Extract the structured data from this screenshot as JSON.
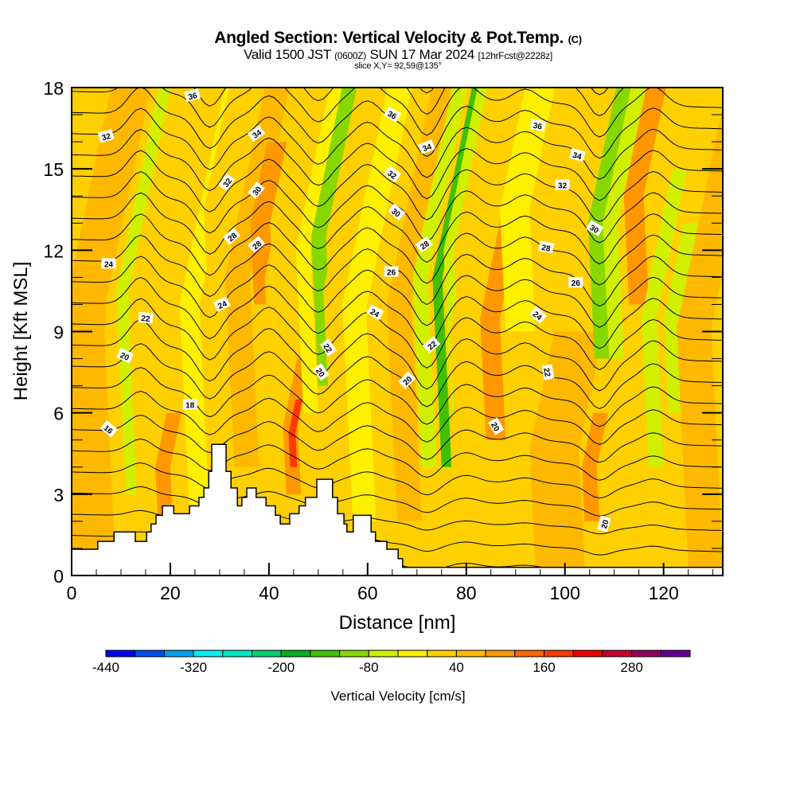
{
  "header": {
    "title": "Angled Section: Vertical Velocity & Pot.Temp.",
    "title_mark": "(C)",
    "valid_prefix": "Valid 1500 JST",
    "valid_utc": "(0600Z)",
    "valid_date": "SUN 17 Mar 2024",
    "forecast": "[12hrFcst@2228z]",
    "slice": "slice X,Y= 92,59@135°"
  },
  "chart_data": {
    "type": "heatmap",
    "title": "Angled Section: Vertical Velocity & Pot.Temp.",
    "xlabel": "Distance [nm]",
    "ylabel": "Height [Kft MSL]",
    "xlim": [
      0,
      132
    ],
    "ylim": [
      0,
      18
    ],
    "xticks": [
      0,
      20,
      40,
      60,
      80,
      100,
      120
    ],
    "yticks": [
      0,
      3,
      6,
      9,
      12,
      15,
      18
    ],
    "colorbar": {
      "title": "Vertical Velocity [cm/s]",
      "tick_labels": [
        "-440",
        "-320",
        "-200",
        "-80",
        "40",
        "160",
        "280"
      ],
      "tick_values": [
        -440,
        -320,
        -200,
        -80,
        40,
        160,
        280
      ],
      "levels": [
        -440,
        -400,
        -360,
        -320,
        -280,
        -240,
        -200,
        -160,
        -120,
        -80,
        -40,
        0,
        40,
        80,
        120,
        160,
        200,
        240,
        280,
        320,
        360
      ],
      "colors": [
        "#0000f0",
        "#0050f0",
        "#00a0f0",
        "#00f0f0",
        "#00e8c0",
        "#00d070",
        "#00b020",
        "#40c000",
        "#88d800",
        "#d0f000",
        "#fff000",
        "#ffd000",
        "#ffb800",
        "#ff9800",
        "#ff6800",
        "#ff3800",
        "#f00000",
        "#c80030",
        "#900060",
        "#600090"
      ]
    },
    "velocity_bands": [
      {
        "x": 0,
        "width": 9,
        "ymin": 0,
        "ymax": 18,
        "value": 60
      },
      {
        "x": 9,
        "width": 5,
        "ymin": 2,
        "ymax": 18,
        "value": 10
      },
      {
        "x": 11,
        "width": 2.5,
        "ymin": 3,
        "ymax": 18,
        "value": -50
      },
      {
        "x": 14,
        "width": 11,
        "ymin": 0,
        "ymax": 18,
        "value": 30
      },
      {
        "x": 17.5,
        "width": 3,
        "ymin": 2,
        "ymax": 6,
        "value": 90
      },
      {
        "x": 24,
        "width": 4,
        "ymin": 2,
        "ymax": 18,
        "value": -30
      },
      {
        "x": 28,
        "width": 5,
        "ymin": 9,
        "ymax": 18,
        "value": 10
      },
      {
        "x": 33,
        "width": 5,
        "ymin": 4,
        "ymax": 18,
        "value": 50
      },
      {
        "x": 37,
        "width": 4,
        "ymin": 10,
        "ymax": 16,
        "value": 90
      },
      {
        "x": 41,
        "width": 3,
        "ymin": 4,
        "ymax": 18,
        "value": 10
      },
      {
        "x": 43.5,
        "width": 3,
        "ymin": 3,
        "ymax": 8,
        "value": 110
      },
      {
        "x": 44.3,
        "width": 1.4,
        "ymin": 4,
        "ymax": 6.5,
        "value": 170
      },
      {
        "x": 47,
        "width": 3,
        "ymin": 6,
        "ymax": 18,
        "value": -40
      },
      {
        "x": 50,
        "width": 3,
        "ymin": 7,
        "ymax": 18,
        "value": -100
      },
      {
        "x": 53,
        "width": 4,
        "ymin": 3,
        "ymax": 18,
        "value": 30
      },
      {
        "x": 57,
        "width": 5,
        "ymin": 2,
        "ymax": 18,
        "value": -30
      },
      {
        "x": 62,
        "width": 4,
        "ymin": 1,
        "ymax": 18,
        "value": 30
      },
      {
        "x": 66,
        "width": 5,
        "ymin": 2,
        "ymax": 18,
        "value": 70
      },
      {
        "x": 71,
        "width": 3,
        "ymin": 4,
        "ymax": 18,
        "value": -50
      },
      {
        "x": 75,
        "width": 2,
        "ymin": 4,
        "ymax": 18,
        "value": -140
      },
      {
        "x": 77,
        "width": 2,
        "ymin": 6,
        "ymax": 18,
        "value": -60
      },
      {
        "x": 79,
        "width": 5,
        "ymin": 0.3,
        "ymax": 18,
        "value": 30
      },
      {
        "x": 84,
        "width": 4,
        "ymin": 5,
        "ymax": 14,
        "value": 90
      },
      {
        "x": 88,
        "width": 6,
        "ymin": 9,
        "ymax": 18,
        "value": -40
      },
      {
        "x": 94,
        "width": 10,
        "ymin": 0.3,
        "ymax": 9,
        "value": 50
      },
      {
        "x": 104,
        "width": 3,
        "ymin": 2,
        "ymax": 6,
        "value": 100
      },
      {
        "x": 106,
        "width": 3,
        "ymin": 8,
        "ymax": 18,
        "value": -110
      },
      {
        "x": 109,
        "width": 3,
        "ymin": 8,
        "ymax": 18,
        "value": -60
      },
      {
        "x": 113,
        "width": 4,
        "ymin": 10,
        "ymax": 18,
        "value": 100
      },
      {
        "x": 117,
        "width": 3,
        "ymin": 4,
        "ymax": 15,
        "value": -60
      },
      {
        "x": 121,
        "width": 4,
        "ymin": 6,
        "ymax": 13,
        "value": -70
      },
      {
        "x": 125,
        "width": 7,
        "ymin": 0.3,
        "ymax": 18,
        "value": 50
      }
    ],
    "terrain": [
      [
        0,
        0.97
      ],
      [
        5.3,
        0.97
      ],
      [
        5.3,
        1.26
      ],
      [
        8.6,
        1.26
      ],
      [
        8.6,
        1.61
      ],
      [
        12.9,
        1.61
      ],
      [
        12.9,
        1.26
      ],
      [
        15.2,
        1.26
      ],
      [
        15.2,
        1.61
      ],
      [
        16.1,
        1.61
      ],
      [
        16.1,
        1.9
      ],
      [
        17.1,
        1.9
      ],
      [
        17.1,
        2.22
      ],
      [
        18.4,
        2.22
      ],
      [
        18.4,
        2.57
      ],
      [
        20.7,
        2.57
      ],
      [
        20.7,
        2.28
      ],
      [
        23.9,
        2.28
      ],
      [
        23.9,
        2.57
      ],
      [
        25.8,
        2.57
      ],
      [
        25.8,
        2.88
      ],
      [
        26.8,
        2.88
      ],
      [
        26.8,
        3.23
      ],
      [
        27.8,
        3.23
      ],
      [
        27.8,
        3.84
      ],
      [
        28.4,
        3.84
      ],
      [
        28.4,
        4.84
      ],
      [
        31.3,
        4.84
      ],
      [
        31.3,
        3.84
      ],
      [
        32.3,
        3.84
      ],
      [
        32.3,
        3.23
      ],
      [
        33.6,
        3.23
      ],
      [
        33.6,
        2.57
      ],
      [
        34.5,
        2.57
      ],
      [
        34.5,
        2.88
      ],
      [
        35.5,
        2.88
      ],
      [
        35.5,
        3.23
      ],
      [
        37.4,
        3.23
      ],
      [
        37.4,
        2.88
      ],
      [
        39.4,
        2.88
      ],
      [
        39.4,
        2.57
      ],
      [
        41.3,
        2.57
      ],
      [
        41.3,
        2.22
      ],
      [
        42.3,
        2.22
      ],
      [
        42.3,
        1.9
      ],
      [
        44.2,
        1.9
      ],
      [
        44.2,
        2.28
      ],
      [
        46.1,
        2.28
      ],
      [
        46.1,
        2.57
      ],
      [
        47.4,
        2.57
      ],
      [
        47.4,
        2.88
      ],
      [
        49.7,
        2.88
      ],
      [
        49.7,
        3.55
      ],
      [
        52.9,
        3.55
      ],
      [
        52.9,
        2.88
      ],
      [
        53.9,
        2.88
      ],
      [
        53.9,
        2.28
      ],
      [
        55.2,
        2.28
      ],
      [
        55.2,
        1.9
      ],
      [
        55.8,
        1.9
      ],
      [
        55.8,
        1.61
      ],
      [
        57.1,
        1.61
      ],
      [
        57.1,
        2.22
      ],
      [
        60.7,
        2.22
      ],
      [
        60.7,
        1.61
      ],
      [
        61.6,
        1.61
      ],
      [
        61.6,
        1.26
      ],
      [
        63.9,
        1.26
      ],
      [
        63.9,
        0.97
      ],
      [
        66.2,
        0.97
      ],
      [
        66.2,
        0.62
      ],
      [
        67.1,
        0.62
      ],
      [
        67.1,
        0.3
      ],
      [
        132,
        0.3
      ]
    ],
    "theta_contours": {
      "interval": 1,
      "labels": [
        {
          "value": "36",
          "x": 24.5,
          "y": 17.7,
          "angle": -15
        },
        {
          "value": "34",
          "x": 37.5,
          "y": 16.3,
          "angle": -35
        },
        {
          "value": "32",
          "x": 7.0,
          "y": 16.2,
          "angle": -15
        },
        {
          "value": "32",
          "x": 31.5,
          "y": 14.5,
          "angle": -55
        },
        {
          "value": "30",
          "x": 37.5,
          "y": 14.2,
          "angle": -50
        },
        {
          "value": "28",
          "x": 32.5,
          "y": 12.5,
          "angle": -40
        },
        {
          "value": "28",
          "x": 37.5,
          "y": 12.2,
          "angle": -40
        },
        {
          "value": "24",
          "x": 7.5,
          "y": 11.5,
          "angle": 0
        },
        {
          "value": "24",
          "x": 30.5,
          "y": 10.0,
          "angle": -25
        },
        {
          "value": "22",
          "x": 15.0,
          "y": 9.5,
          "angle": 5
        },
        {
          "value": "20",
          "x": 10.8,
          "y": 8.1,
          "angle": 25
        },
        {
          "value": "18",
          "x": 24.0,
          "y": 6.3,
          "angle": 0
        },
        {
          "value": "16",
          "x": 7.5,
          "y": 5.4,
          "angle": 40
        },
        {
          "value": "36",
          "x": 65.0,
          "y": 17.0,
          "angle": 30
        },
        {
          "value": "36",
          "x": 94.5,
          "y": 16.6,
          "angle": 10
        },
        {
          "value": "34",
          "x": 72.0,
          "y": 15.8,
          "angle": -20
        },
        {
          "value": "34",
          "x": 102.5,
          "y": 15.5,
          "angle": 15
        },
        {
          "value": "32",
          "x": 65.0,
          "y": 14.8,
          "angle": 35
        },
        {
          "value": "32",
          "x": 99.5,
          "y": 14.4,
          "angle": 0
        },
        {
          "value": "30",
          "x": 65.8,
          "y": 13.4,
          "angle": 40
        },
        {
          "value": "30",
          "x": 106.0,
          "y": 12.8,
          "angle": 30
        },
        {
          "value": "28",
          "x": 71.5,
          "y": 12.2,
          "angle": -35
        },
        {
          "value": "28",
          "x": 96.2,
          "y": 12.1,
          "angle": 10
        },
        {
          "value": "26",
          "x": 64.8,
          "y": 11.2,
          "angle": 0
        },
        {
          "value": "26",
          "x": 102.2,
          "y": 10.8,
          "angle": 0
        },
        {
          "value": "24",
          "x": 61.5,
          "y": 9.7,
          "angle": 30
        },
        {
          "value": "24",
          "x": 94.5,
          "y": 9.6,
          "angle": 40
        },
        {
          "value": "22",
          "x": 52.0,
          "y": 8.4,
          "angle": 55
        },
        {
          "value": "22",
          "x": 73.0,
          "y": 8.5,
          "angle": -40
        },
        {
          "value": "22",
          "x": 96.5,
          "y": 7.5,
          "angle": 80
        },
        {
          "value": "20",
          "x": 50.5,
          "y": 7.5,
          "angle": 55
        },
        {
          "value": "20",
          "x": 68.0,
          "y": 7.2,
          "angle": -45
        },
        {
          "value": "20",
          "x": 86.0,
          "y": 5.5,
          "angle": 60
        },
        {
          "value": "20",
          "x": 108.0,
          "y": 1.9,
          "angle": -75
        }
      ]
    },
    "annotations": []
  }
}
